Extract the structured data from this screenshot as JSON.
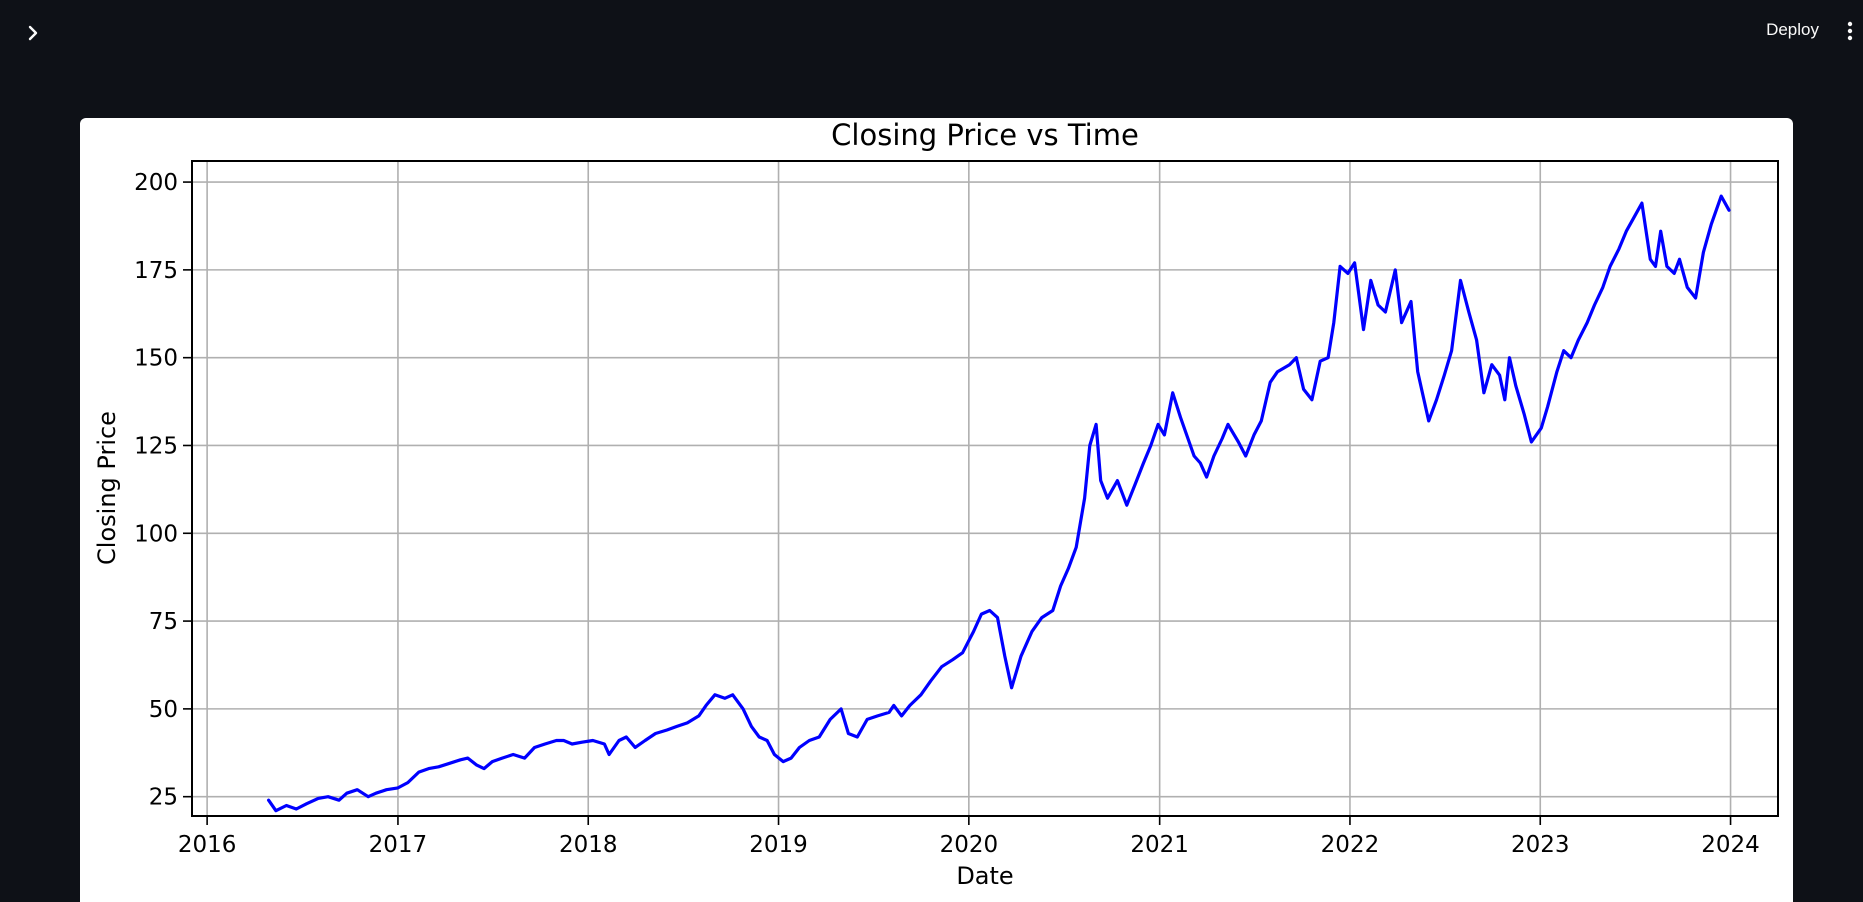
{
  "header": {
    "deploy_label": "Deploy",
    "sidebar_toggle_icon": "chevron-right-icon",
    "menu_icon": "vertical-dots-icon"
  },
  "chart_data": {
    "type": "line",
    "title": "Closing Price vs Time",
    "xlabel": "Date",
    "ylabel": "Closing Price",
    "x_ticks": [
      "2016",
      "2017",
      "2018",
      "2019",
      "2020",
      "2021",
      "2022",
      "2023",
      "2024"
    ],
    "y_ticks": [
      "25",
      "50",
      "75",
      "100",
      "125",
      "150",
      "175",
      "200"
    ],
    "xlim": [
      "2015-12-03",
      "2024-04-01"
    ],
    "ylim": [
      19.5,
      206
    ],
    "grid": true,
    "line_color": "#0000ff",
    "series": [
      {
        "x": [
          "2016-04-28",
          "2016-05-12",
          "2016-06-01",
          "2016-06-20",
          "2016-07-10",
          "2016-08-01",
          "2016-08-20",
          "2016-09-10",
          "2016-09-25",
          "2016-10-15",
          "2016-11-05",
          "2016-11-20",
          "2016-12-10",
          "2017-01-01",
          "2017-01-20",
          "2017-02-10",
          "2017-03-01",
          "2017-03-20",
          "2017-04-10",
          "2017-05-01",
          "2017-05-15",
          "2017-06-01",
          "2017-06-15",
          "2017-07-01",
          "2017-07-20",
          "2017-08-10",
          "2017-09-01",
          "2017-09-20",
          "2017-10-10",
          "2017-11-01",
          "2017-11-15",
          "2017-12-01",
          "2017-12-20",
          "2018-01-10",
          "2018-02-01",
          "2018-02-10",
          "2018-03-01",
          "2018-03-15",
          "2018-04-01",
          "2018-04-20",
          "2018-05-10",
          "2018-06-01",
          "2018-06-20",
          "2018-07-10",
          "2018-08-01",
          "2018-08-15",
          "2018-09-01",
          "2018-09-20",
          "2018-10-05",
          "2018-10-25",
          "2018-11-10",
          "2018-11-25",
          "2018-12-10",
          "2018-12-24",
          "2019-01-10",
          "2019-01-25",
          "2019-02-10",
          "2019-03-01",
          "2019-03-20",
          "2019-04-10",
          "2019-05-01",
          "2019-05-15",
          "2019-06-01",
          "2019-06-20",
          "2019-07-10",
          "2019-08-01",
          "2019-08-10",
          "2019-08-25",
          "2019-09-10",
          "2019-10-01",
          "2019-10-20",
          "2019-11-10",
          "2019-12-01",
          "2019-12-20",
          "2020-01-10",
          "2020-01-25",
          "2020-02-10",
          "2020-02-25",
          "2020-03-10",
          "2020-03-23",
          "2020-04-10",
          "2020-05-01",
          "2020-05-20",
          "2020-06-10",
          "2020-06-25",
          "2020-07-10",
          "2020-07-25",
          "2020-08-10",
          "2020-08-20",
          "2020-09-01",
          "2020-09-10",
          "2020-09-23",
          "2020-10-12",
          "2020-10-30",
          "2020-11-15",
          "2020-12-01",
          "2020-12-15",
          "2020-12-29",
          "2021-01-10",
          "2021-01-26",
          "2021-02-10",
          "2021-03-08",
          "2021-03-20",
          "2021-04-01",
          "2021-04-15",
          "2021-05-01",
          "2021-05-12",
          "2021-06-01",
          "2021-06-15",
          "2021-07-01",
          "2021-07-15",
          "2021-08-01",
          "2021-08-15",
          "2021-09-07",
          "2021-09-20",
          "2021-10-04",
          "2021-10-20",
          "2021-11-05",
          "2021-11-20",
          "2021-12-01",
          "2021-12-13",
          "2021-12-28",
          "2022-01-10",
          "2022-01-27",
          "2022-02-10",
          "2022-02-24",
          "2022-03-10",
          "2022-03-29",
          "2022-04-10",
          "2022-04-28",
          "2022-05-11",
          "2022-05-20",
          "2022-06-01",
          "2022-06-16",
          "2022-07-01",
          "2022-07-15",
          "2022-08-01",
          "2022-08-17",
          "2022-09-01",
          "2022-09-15",
          "2022-09-30",
          "2022-10-15",
          "2022-10-25",
          "2022-11-03",
          "2022-11-15",
          "2022-12-01",
          "2022-12-15",
          "2023-01-03",
          "2023-01-15",
          "2023-02-02",
          "2023-02-15",
          "2023-03-01",
          "2023-03-15",
          "2023-04-01",
          "2023-04-15",
          "2023-05-01",
          "2023-05-15",
          "2023-06-01",
          "2023-06-15",
          "2023-06-30",
          "2023-07-15",
          "2023-07-31",
          "2023-08-10",
          "2023-08-20",
          "2023-09-01",
          "2023-09-15",
          "2023-09-25",
          "2023-10-10",
          "2023-10-26",
          "2023-11-10",
          "2023-11-25",
          "2023-12-14",
          "2023-12-29"
        ],
        "values": [
          24,
          21,
          22.5,
          21.5,
          23,
          24.5,
          25,
          24,
          26,
          27,
          25,
          26,
          27,
          27.5,
          29,
          32,
          33,
          33.5,
          34.5,
          35.5,
          36,
          34,
          33,
          35,
          36,
          37,
          36,
          39,
          40,
          41,
          41,
          40,
          40.5,
          41,
          40,
          37,
          41,
          42,
          39,
          41,
          43,
          44,
          45,
          46,
          48,
          51,
          54,
          53,
          54,
          50,
          45,
          42,
          41,
          37,
          35,
          36,
          39,
          41,
          42,
          47,
          50,
          43,
          42,
          47,
          48,
          49,
          51,
          48,
          51,
          54,
          58,
          62,
          64,
          66,
          72,
          77,
          78,
          76,
          65,
          56,
          65,
          72,
          76,
          78,
          85,
          90,
          96,
          110,
          125,
          131,
          115,
          110,
          115,
          108,
          114,
          120,
          125,
          131,
          128,
          140,
          133,
          122,
          120,
          116,
          122,
          127,
          131,
          126,
          122,
          128,
          132,
          143,
          146,
          148,
          150,
          141,
          138,
          149,
          150,
          160,
          176,
          174,
          177,
          158,
          172,
          165,
          163,
          175,
          160,
          166,
          146,
          140,
          132,
          138,
          145,
          152,
          172,
          163,
          155,
          140,
          148,
          145,
          138,
          150,
          142,
          134,
          126,
          130,
          136,
          146,
          152,
          150,
          155,
          160,
          165,
          170,
          176,
          181,
          186,
          190,
          194,
          178,
          176,
          186,
          176,
          174,
          178,
          170,
          167,
          180,
          188,
          196,
          192
        ]
      }
    ]
  }
}
